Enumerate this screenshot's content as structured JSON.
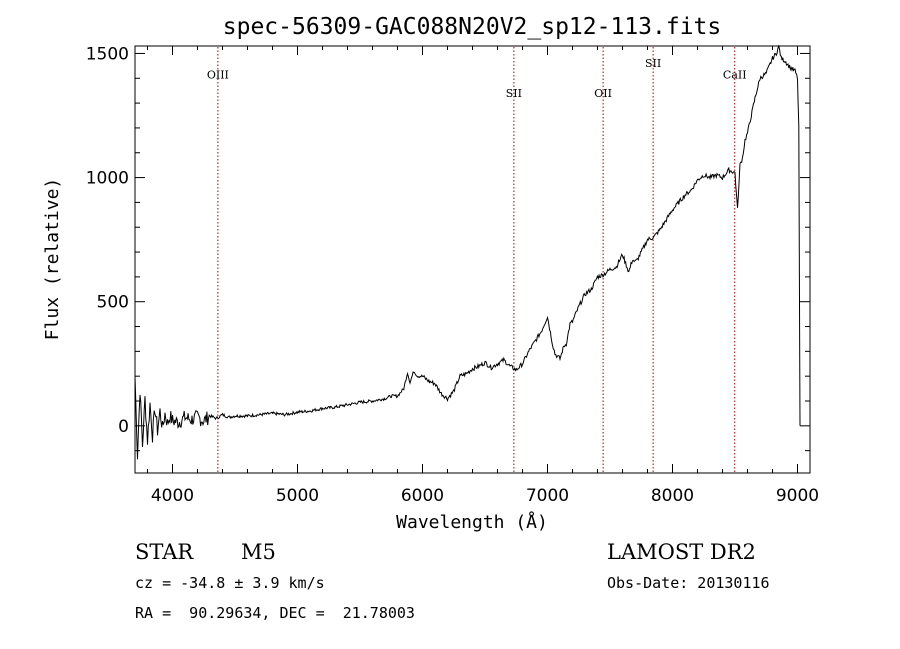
{
  "chart_data": {
    "type": "line",
    "title": "spec-56309-GAC088N20V2_sp12-113.fits",
    "xlabel": "Wavelength (Å)",
    "ylabel": "Flux (relative)",
    "xlim": [
      3700,
      9100
    ],
    "ylim": [
      -190,
      1530
    ],
    "xticks": [
      4000,
      5000,
      6000,
      7000,
      8000,
      9000
    ],
    "xtick_labels": [
      "4000",
      "5000",
      "6000",
      "7000",
      "8000",
      "9000"
    ],
    "yticks": [
      0,
      500,
      1000,
      1500
    ],
    "ytick_labels": [
      "0",
      "500",
      "1000",
      "1500"
    ],
    "grid": false,
    "line_color": "#000000",
    "marker_color": "#aa0000",
    "lines": [
      {
        "name": "OIII",
        "x": 4363,
        "label_y": 1400
      },
      {
        "name": "SII",
        "x": 6731,
        "label_y": 1325
      },
      {
        "name": "OII",
        "x": 7445,
        "label_y": 1325
      },
      {
        "name": "SII",
        "x": 7845,
        "label_y": 1445
      },
      {
        "name": "CaII",
        "x": 8498,
        "label_y": 1400
      }
    ],
    "series": [
      {
        "x": [
          3700,
          3720,
          3740,
          3760,
          3780,
          3800,
          3820,
          3840,
          3860,
          3880,
          3900,
          3920,
          3940,
          3960,
          3980,
          4000,
          4050,
          4100,
          4150,
          4200,
          4250,
          4300,
          4350,
          4400,
          4450,
          4500,
          4600,
          4700,
          4800,
          4900,
          5000,
          5100,
          5200,
          5300,
          5400,
          5500,
          5600,
          5700,
          5750,
          5800,
          5850,
          5880,
          5900,
          5930,
          5960,
          6000,
          6050,
          6100,
          6150,
          6200,
          6250,
          6300,
          6350,
          6400,
          6450,
          6500,
          6550,
          6600,
          6650,
          6700,
          6750,
          6800,
          6850,
          6900,
          6950,
          7000,
          7040,
          7060,
          7080,
          7100,
          7130,
          7150,
          7180,
          7200,
          7250,
          7300,
          7350,
          7400,
          7450,
          7500,
          7550,
          7600,
          7650,
          7680,
          7700,
          7720,
          7750,
          7800,
          7850,
          7900,
          7950,
          8000,
          8050,
          8100,
          8150,
          8200,
          8250,
          8300,
          8350,
          8400,
          8450,
          8500,
          8520,
          8540,
          8560,
          8580,
          8600,
          8630,
          8660,
          8700,
          8750,
          8800,
          8830,
          8850,
          8870,
          8900,
          8930,
          8950,
          8980,
          9000,
          9010,
          9020
        ],
        "y": [
          200,
          -120,
          150,
          -80,
          110,
          -60,
          90,
          -40,
          70,
          -20,
          60,
          -10,
          50,
          10,
          40,
          20,
          15,
          35,
          25,
          35,
          20,
          40,
          30,
          45,
          35,
          40,
          40,
          45,
          50,
          45,
          55,
          60,
          70,
          75,
          85,
          95,
          100,
          110,
          120,
          120,
          150,
          215,
          175,
          220,
          200,
          200,
          180,
          170,
          130,
          110,
          140,
          200,
          210,
          230,
          240,
          255,
          235,
          250,
          265,
          240,
          225,
          250,
          300,
          340,
          380,
          440,
          330,
          290,
          280,
          270,
          320,
          330,
          410,
          420,
          480,
          530,
          550,
          600,
          610,
          630,
          640,
          690,
          620,
          670,
          660,
          670,
          700,
          750,
          760,
          790,
          830,
          870,
          900,
          930,
          950,
          990,
          1010,
          1000,
          1010,
          1000,
          1030,
          1020,
          870,
          1050,
          1080,
          1150,
          1180,
          1250,
          1320,
          1400,
          1420,
          1480,
          1500,
          1530,
          1480,
          1470,
          1450,
          1440,
          1430,
          1400,
          1200,
          0
        ]
      }
    ]
  },
  "info": {
    "object_class": "STAR",
    "subclass": "M5",
    "survey": "LAMOST DR2",
    "cz": "cz = -34.8 ± 3.9 km/s",
    "obs_date": "Obs-Date: 20130116",
    "radec": "RA =  90.29634, DEC =  21.78003"
  }
}
